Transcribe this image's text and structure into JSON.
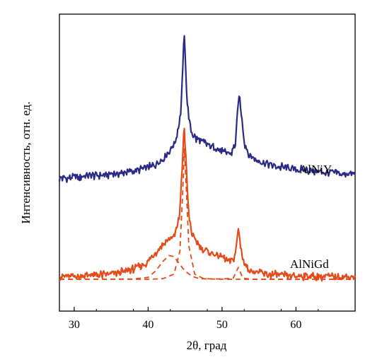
{
  "chart_data": {
    "type": "line",
    "xlabel": "2θ, град",
    "ylabel": "Интенсивность, отн. ед.",
    "xlim": [
      28,
      68
    ],
    "ylim": [
      0,
      100
    ],
    "grid": false,
    "x_ticks": [
      30,
      40,
      50,
      60
    ],
    "series": [
      {
        "name": "AlNiY",
        "color": "#2b2a86",
        "style": "solid",
        "points": [
          [
            28,
            45
          ],
          [
            30,
            45.3
          ],
          [
            32,
            45.8
          ],
          [
            34,
            46.2
          ],
          [
            36,
            46.8
          ],
          [
            38,
            47.6
          ],
          [
            40,
            49
          ],
          [
            41,
            50.2
          ],
          [
            42,
            52.3
          ],
          [
            43,
            55.5
          ],
          [
            43.8,
            59.5
          ],
          [
            44.4,
            69
          ],
          [
            44.7,
            86
          ],
          [
            44.85,
            99.5
          ],
          [
            45.0,
            91
          ],
          [
            45.3,
            72
          ],
          [
            45.8,
            62
          ],
          [
            46.5,
            59.5
          ],
          [
            47.5,
            58.2
          ],
          [
            48.5,
            56.8
          ],
          [
            49.5,
            55.6
          ],
          [
            50.5,
            54.4
          ],
          [
            51.3,
            54.2
          ],
          [
            51.8,
            58
          ],
          [
            52.1,
            69.5
          ],
          [
            52.3,
            76
          ],
          [
            52.6,
            69
          ],
          [
            53,
            58.5
          ],
          [
            53.6,
            53.6
          ],
          [
            55,
            51.3
          ],
          [
            57,
            49.6
          ],
          [
            60,
            48.4
          ],
          [
            63,
            47.4
          ],
          [
            66,
            46.7
          ],
          [
            68,
            46.3
          ]
        ]
      },
      {
        "name": "AlNiGd",
        "color": "#e64a19",
        "style": "solid",
        "points": [
          [
            28,
            8.5
          ],
          [
            30,
            8.7
          ],
          [
            32,
            9
          ],
          [
            34,
            9.3
          ],
          [
            36,
            10
          ],
          [
            38,
            11.3
          ],
          [
            40,
            14
          ],
          [
            41,
            17.4
          ],
          [
            42,
            20.5
          ],
          [
            43,
            22.8
          ],
          [
            43.6,
            23.6
          ],
          [
            44.2,
            30
          ],
          [
            44.6,
            48
          ],
          [
            44.85,
            65
          ],
          [
            45.1,
            53
          ],
          [
            45.5,
            31
          ],
          [
            46,
            23.6
          ],
          [
            47,
            19.7
          ],
          [
            48,
            18
          ],
          [
            49,
            16.8
          ],
          [
            50,
            15.7
          ],
          [
            51,
            14.4
          ],
          [
            51.6,
            15
          ],
          [
            52,
            21
          ],
          [
            52.2,
            26.5
          ],
          [
            52.5,
            20
          ],
          [
            53,
            13
          ],
          [
            54,
            10.5
          ],
          [
            56,
            9.5
          ],
          [
            58,
            9
          ],
          [
            60,
            8.8
          ],
          [
            63,
            8.6
          ],
          [
            66,
            8.5
          ],
          [
            68,
            8.5
          ]
        ]
      },
      {
        "name": "",
        "color": "#e64a19",
        "style": "dashed",
        "points": [
          [
            28,
            7.6
          ],
          [
            40,
            7.6
          ],
          [
            42,
            7.8
          ],
          [
            43.5,
            9.5
          ],
          [
            44.3,
            18
          ],
          [
            44.7,
            41
          ],
          [
            44.9,
            56
          ],
          [
            45.1,
            45
          ],
          [
            45.5,
            20
          ],
          [
            46.3,
            9.5
          ],
          [
            47.5,
            7.8
          ],
          [
            50,
            7.7
          ],
          [
            51.5,
            8
          ],
          [
            52.2,
            12
          ],
          [
            52.8,
            8
          ],
          [
            54,
            7.6
          ],
          [
            68,
            7.6
          ]
        ]
      },
      {
        "name": "",
        "color": "#e64a19",
        "style": "dashed",
        "points": [
          [
            28,
            7.6
          ],
          [
            38,
            7.7
          ],
          [
            40,
            8.3
          ],
          [
            41,
            10.6
          ],
          [
            42,
            14.2
          ],
          [
            42.8,
            16.4
          ],
          [
            43.5,
            16
          ],
          [
            44.2,
            13.4
          ],
          [
            45,
            10.6
          ],
          [
            46,
            8.6
          ],
          [
            47,
            7.8
          ],
          [
            50,
            7.6
          ],
          [
            68,
            7.6
          ]
        ]
      }
    ]
  }
}
